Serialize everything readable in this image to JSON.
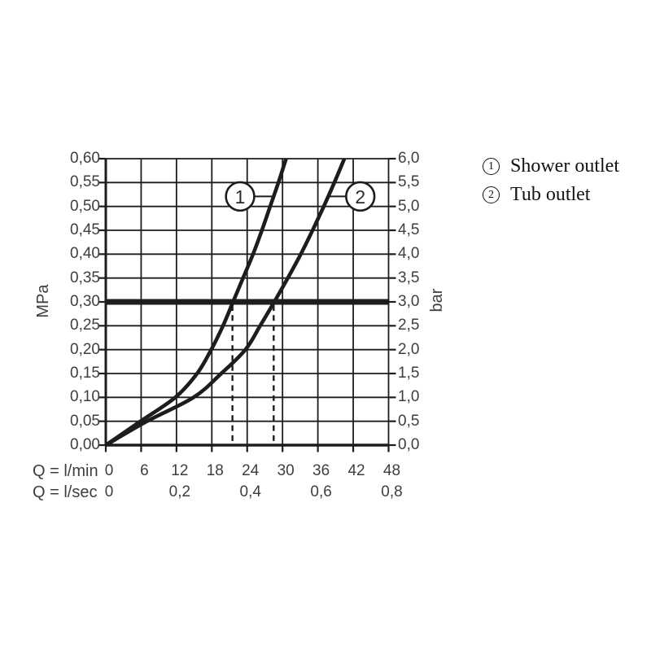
{
  "figure": {
    "kind": "flow-pressure-diagram"
  },
  "legend": {
    "items": [
      {
        "symbol": "1",
        "label": "Shower outlet"
      },
      {
        "symbol": "2",
        "label": "Tub outlet"
      }
    ]
  },
  "chart_data": {
    "type": "line",
    "title": "",
    "grid": true,
    "x": {
      "label_primary": "Q = l/min",
      "label_secondary": "Q = l/sec",
      "range_lmin": [
        0,
        48
      ],
      "ticks_lmin": [
        "0",
        "6",
        "12",
        "18",
        "24",
        "30",
        "36",
        "42",
        "48"
      ],
      "ticks_lmin_values": [
        0,
        6,
        12,
        18,
        24,
        30,
        36,
        42,
        48
      ],
      "ticks_lsec": [
        "0",
        "0,2",
        "0,4",
        "0,6",
        "0,8"
      ],
      "ticks_lsec_positions_lmin": [
        0,
        12,
        24,
        36,
        48
      ]
    },
    "y_left": {
      "label": "MPa",
      "range": [
        0,
        0.6
      ],
      "ticks": [
        "0,00",
        "0,05",
        "0,10",
        "0,15",
        "0,20",
        "0,25",
        "0,30",
        "0,35",
        "0,40",
        "0,45",
        "0,50",
        "0,55",
        "0,60"
      ],
      "ticks_values": [
        0,
        0.05,
        0.1,
        0.15,
        0.2,
        0.25,
        0.3,
        0.35,
        0.4,
        0.45,
        0.5,
        0.55,
        0.6
      ]
    },
    "y_right": {
      "label": "bar",
      "range": [
        0,
        6
      ],
      "ticks": [
        "0,0",
        "0,5",
        "1,0",
        "1,5",
        "2,0",
        "2,5",
        "3,0",
        "3,5",
        "4,0",
        "4,5",
        "5,0",
        "5,5",
        "6,0"
      ]
    },
    "reference_line": {
      "p_mpa": 0.3,
      "p_bar": 3.0
    },
    "drop_lines_q_lmin": [
      21.5,
      28.5
    ],
    "series": [
      {
        "name": "Shower outlet",
        "marker": "1",
        "points_q_lmin_p_mpa": [
          [
            0,
            0
          ],
          [
            5.9,
            0.05
          ],
          [
            11.8,
            0.1
          ],
          [
            15.5,
            0.15
          ],
          [
            17.9,
            0.2
          ],
          [
            19.9,
            0.25
          ],
          [
            21.6,
            0.3
          ],
          [
            23.3,
            0.35
          ],
          [
            25.0,
            0.4
          ],
          [
            26.5,
            0.45
          ],
          [
            27.9,
            0.5
          ],
          [
            29.3,
            0.55
          ],
          [
            30.6,
            0.6
          ]
        ]
      },
      {
        "name": "Tub outlet",
        "marker": "2",
        "points_q_lmin_p_mpa": [
          [
            0,
            0
          ],
          [
            7.0,
            0.05
          ],
          [
            14.9,
            0.1
          ],
          [
            19.6,
            0.15
          ],
          [
            23.7,
            0.2
          ],
          [
            26.2,
            0.25
          ],
          [
            28.6,
            0.3
          ],
          [
            30.9,
            0.35
          ],
          [
            33.1,
            0.4
          ],
          [
            35.1,
            0.45
          ],
          [
            37.0,
            0.5
          ],
          [
            38.8,
            0.55
          ],
          [
            40.5,
            0.6
          ]
        ]
      }
    ],
    "annotations": [
      {
        "label": "1",
        "series": "Shower outlet",
        "q_lmin": 22.8,
        "p_mpa": 0.521,
        "attach_q_lmin": 28.7,
        "side": "right"
      },
      {
        "label": "2",
        "series": "Tub outlet",
        "q_lmin": 43.2,
        "p_mpa": 0.521,
        "attach_q_lmin": 37.8,
        "side": "left"
      }
    ]
  },
  "colors": {
    "ink": "#1d1d1b",
    "label_text": "#3e3e3e",
    "legend_text": "#121212",
    "background": "#ffffff"
  }
}
